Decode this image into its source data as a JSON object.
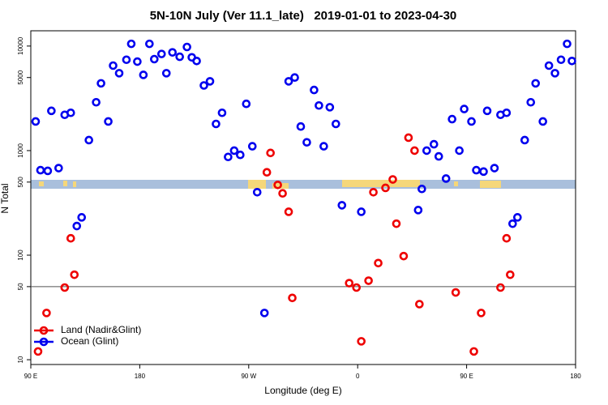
{
  "chart_data": {
    "type": "scatter",
    "title": "5N-10N July (Ver 11.1_late)   2019-01-01 to 2023-04-30",
    "xlabel": "Longitude (deg E)",
    "ylabel": "N Total",
    "xlim": [
      90,
      540
    ],
    "xticks": [
      {
        "value": 90,
        "label": "90 E"
      },
      {
        "value": 180,
        "label": "180"
      },
      {
        "value": 270,
        "label": "90 W"
      },
      {
        "value": 360,
        "label": "0"
      },
      {
        "value": 450,
        "label": "90 E"
      },
      {
        "value": 540,
        "label": "180"
      }
    ],
    "ylim": [
      9,
      14000
    ],
    "yticks": [
      10,
      50,
      100,
      500,
      1000,
      5000,
      10000
    ],
    "log_y": true,
    "hline": 50,
    "legend": "lower left",
    "series": [
      {
        "name": "Land (Nadir&Glint)",
        "color": "#ee0000",
        "x": [
          96,
          103,
          118,
          123,
          126,
          285,
          288,
          294,
          298,
          303,
          306,
          353,
          359,
          363,
          369,
          373,
          377,
          383,
          389,
          392,
          398,
          402,
          407,
          411,
          441,
          456,
          462,
          478,
          483,
          486
        ],
        "values": [
          12,
          28,
          49,
          145,
          65,
          620,
          950,
          470,
          390,
          260,
          39,
          54,
          49,
          15,
          57,
          400,
          84,
          440,
          530,
          200,
          98,
          1330,
          1000,
          34,
          44,
          12,
          28,
          49,
          145,
          65
        ]
      },
      {
        "name": "Ocean (Glint)",
        "color": "#0000ee",
        "x": [
          94,
          98,
          104,
          107,
          113,
          118,
          123,
          128,
          132,
          138,
          144,
          148,
          154,
          158,
          163,
          169,
          173,
          178,
          183,
          188,
          192,
          198,
          202,
          207,
          213,
          219,
          223,
          227,
          233,
          238,
          243,
          248,
          253,
          258,
          263,
          268,
          273,
          277,
          283,
          303,
          308,
          313,
          318,
          324,
          328,
          332,
          337,
          342,
          347,
          363,
          410,
          413,
          417,
          423,
          427,
          433,
          438,
          444,
          448,
          454,
          458,
          464,
          467,
          473,
          478,
          483,
          488,
          492,
          498,
          503,
          507,
          513,
          518,
          523,
          528,
          533,
          537
        ],
        "values": [
          1900,
          650,
          640,
          2400,
          680,
          2200,
          2300,
          190,
          230,
          1260,
          2900,
          4400,
          1900,
          6500,
          5500,
          7400,
          10500,
          7100,
          5300,
          10500,
          7500,
          8400,
          5500,
          8700,
          7900,
          9800,
          7800,
          7200,
          4200,
          4600,
          1800,
          2300,
          870,
          1000,
          910,
          2800,
          1100,
          400,
          28,
          4600,
          5000,
          1700,
          1200,
          3800,
          2700,
          1100,
          2600,
          1800,
          300,
          260,
          270,
          430,
          1000,
          1150,
          880,
          540,
          2000,
          1000,
          2500,
          1900,
          650,
          630,
          2400,
          680,
          2200,
          2300,
          200,
          230,
          1260,
          2900,
          4400,
          1900,
          6500,
          5500,
          7400,
          10500,
          7200
        ]
      }
    ]
  }
}
